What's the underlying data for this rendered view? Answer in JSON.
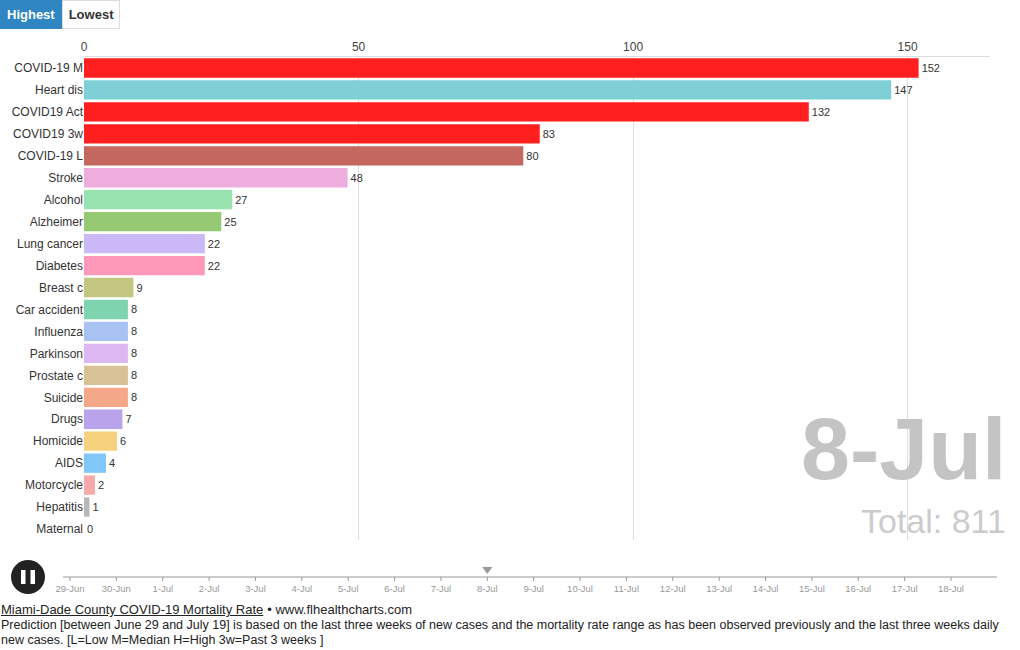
{
  "chart_data": {
    "type": "bar",
    "orientation": "horizontal",
    "categories": [
      "COVID-19 M",
      "Heart dis",
      "COVID19 Act",
      "COVID19 3w",
      "COVID-19 L",
      "Stroke",
      "Alcohol",
      "Alzheimer",
      "Lung cancer",
      "Diabetes",
      "Breast c",
      "Car accident",
      "Influenza",
      "Parkinson",
      "Prostate c",
      "Suicide",
      "Drugs",
      "Homicide",
      "AIDS",
      "Motorcycle",
      "Hepatitis",
      "Maternal"
    ],
    "values": [
      152,
      147,
      132,
      83,
      80,
      48,
      27,
      25,
      22,
      22,
      9,
      8,
      8,
      8,
      8,
      8,
      7,
      6,
      4,
      2,
      1,
      0
    ],
    "colors": [
      "#ff1f1f",
      "#7ecfd6",
      "#ff1f1f",
      "#ff1f1f",
      "#c4675f",
      "#eeaedd",
      "#98e2b0",
      "#95c973",
      "#cbb8f7",
      "#fd98b9",
      "#c3c680",
      "#7fd4b0",
      "#a8c3f2",
      "#ddb7f2",
      "#d8c195",
      "#f5a888",
      "#b9a3ea",
      "#f6d27e",
      "#80c7f7",
      "#f8a9a9",
      "#b8b8b8",
      "#e0e0e0"
    ],
    "xlim": [
      0,
      165
    ],
    "xticks": [
      0,
      50,
      100,
      150
    ],
    "grid": true,
    "data_labels": true,
    "annotations": [
      "Total: 811"
    ]
  },
  "controls": {
    "buttons": [
      "Highest",
      "Lowest"
    ],
    "active": "Highest"
  },
  "timeline": {
    "labels": [
      "29-Jun",
      "30-Jun",
      "1-Jul",
      "2-Jul",
      "3-Jul",
      "4-Jul",
      "5-Jul",
      "6-Jul",
      "7-Jul",
      "8-Jul",
      "9-Jul",
      "10-Jul",
      "11-Jul",
      "12-Jul",
      "13-Jul",
      "14-Jul",
      "15-Jul",
      "16-Jul",
      "17-Jul",
      "18-Jul"
    ],
    "current": "8-Jul"
  },
  "footer": {
    "title": "Miami-Dade County COVID-19 Mortality Rate",
    "source": "• www.flhealthcharts.com",
    "caption": "Prediction [between June 29 and July 19] is based on the last three weeks of new cases and the mortality rate range as has been observed previously and the last three weeks daily new cases. [L=Low M=Median H=High 3w=Past 3 weeks ]"
  }
}
